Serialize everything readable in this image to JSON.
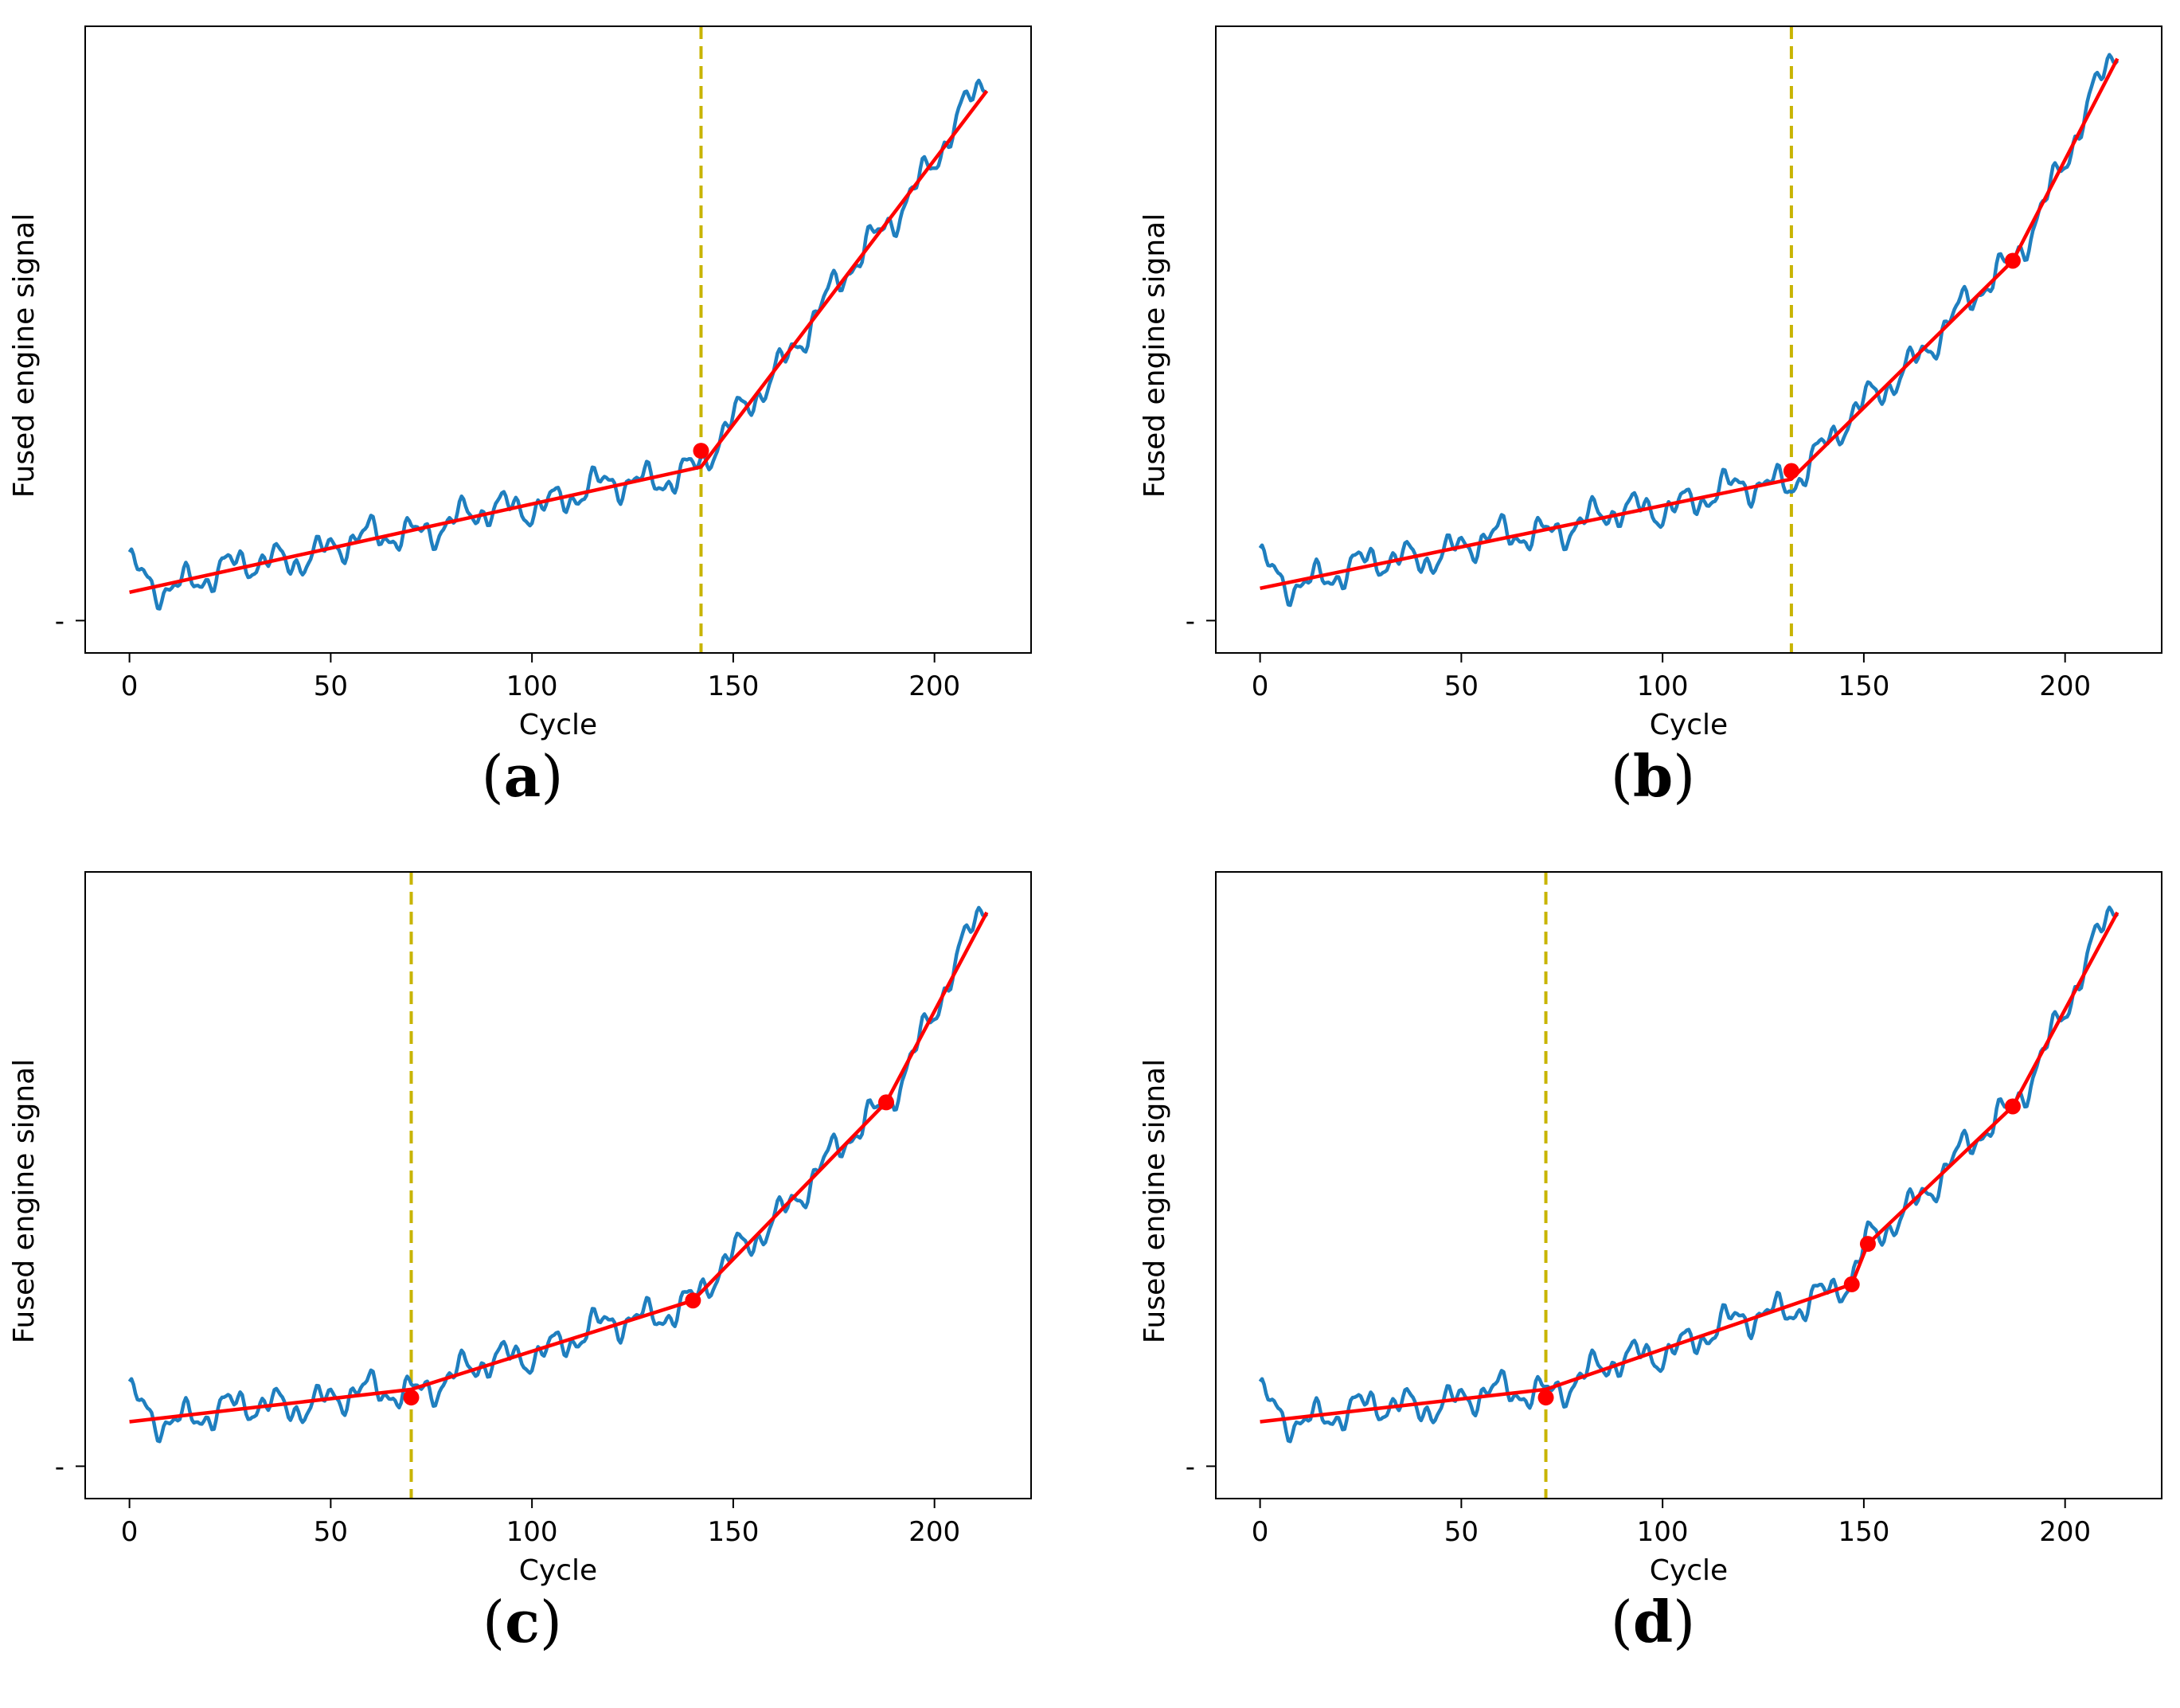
{
  "figure_title": "",
  "chart_data": [
    {
      "type": "line",
      "panel_label": "a",
      "xlabel": "Cycle",
      "ylabel": "Fused engine signal",
      "xlim": [
        -11,
        224
      ],
      "ylim": [
        -0.08,
        1.47
      ],
      "xticks": [
        0,
        50,
        100,
        150,
        200
      ],
      "xtick_labels": [
        "0",
        "50",
        "100",
        "150",
        "200"
      ],
      "yticks": [
        0
      ],
      "ytick_labels": [
        "-"
      ],
      "signal_series_name": "Fused engine signal",
      "signal_color": "#1f7fbf",
      "fit_color": "#ff0000",
      "change_point_color": "#c8b400",
      "change_point_cycle": 142,
      "fit_nodes": [
        [
          0,
          0.07
        ],
        [
          142,
          0.38
        ],
        [
          213,
          1.31
        ]
      ],
      "markers": [
        [
          142,
          0.42
        ]
      ]
    },
    {
      "type": "line",
      "panel_label": "b",
      "xlabel": "Cycle",
      "ylabel": "Fused engine signal",
      "xlim": [
        -11,
        224
      ],
      "ylim": [
        -0.08,
        1.47
      ],
      "xticks": [
        0,
        50,
        100,
        150,
        200
      ],
      "xtick_labels": [
        "0",
        "50",
        "100",
        "150",
        "200"
      ],
      "yticks": [
        0
      ],
      "ytick_labels": [
        "-"
      ],
      "signal_series_name": "Fused engine signal",
      "signal_color": "#1f7fbf",
      "fit_color": "#ff0000",
      "change_point_color": "#c8b400",
      "change_point_cycle": 132,
      "fit_nodes": [
        [
          0,
          0.08
        ],
        [
          132,
          0.35
        ],
        [
          187,
          0.89
        ],
        [
          213,
          1.39
        ]
      ],
      "markers": [
        [
          132,
          0.37
        ],
        [
          187,
          0.89
        ]
      ]
    },
    {
      "type": "line",
      "panel_label": "c",
      "xlabel": "Cycle",
      "ylabel": "Fused engine signal",
      "xlim": [
        -11,
        224
      ],
      "ylim": [
        -0.08,
        1.47
      ],
      "xticks": [
        0,
        50,
        100,
        150,
        200
      ],
      "xtick_labels": [
        "0",
        "50",
        "100",
        "150",
        "200"
      ],
      "yticks": [
        0
      ],
      "ytick_labels": [
        "-"
      ],
      "signal_series_name": "Fused engine signal",
      "signal_color": "#1f7fbf",
      "fit_color": "#ff0000",
      "change_point_color": "#c8b400",
      "change_point_cycle": 70,
      "fit_nodes": [
        [
          0,
          0.11
        ],
        [
          70,
          0.19
        ],
        [
          140,
          0.41
        ],
        [
          188,
          0.9
        ],
        [
          213,
          1.37
        ]
      ],
      "markers": [
        [
          70,
          0.17
        ],
        [
          140,
          0.41
        ],
        [
          188,
          0.9
        ]
      ]
    },
    {
      "type": "line",
      "panel_label": "d",
      "xlabel": "Cycle",
      "ylabel": "Fused engine signal",
      "xlim": [
        -11,
        224
      ],
      "ylim": [
        -0.08,
        1.47
      ],
      "xticks": [
        0,
        50,
        100,
        150,
        200
      ],
      "xtick_labels": [
        "0",
        "50",
        "100",
        "150",
        "200"
      ],
      "yticks": [
        0
      ],
      "ytick_labels": [
        "-"
      ],
      "signal_series_name": "Fused engine signal",
      "signal_color": "#1f7fbf",
      "fit_color": "#ff0000",
      "change_point_color": "#c8b400",
      "change_point_cycle": 71,
      "fit_nodes": [
        [
          0,
          0.11
        ],
        [
          71,
          0.19
        ],
        [
          147,
          0.45
        ],
        [
          151,
          0.55
        ],
        [
          187,
          0.89
        ],
        [
          213,
          1.37
        ]
      ],
      "markers": [
        [
          71,
          0.17
        ],
        [
          147,
          0.45
        ],
        [
          151,
          0.55
        ],
        [
          187,
          0.89
        ]
      ]
    }
  ]
}
